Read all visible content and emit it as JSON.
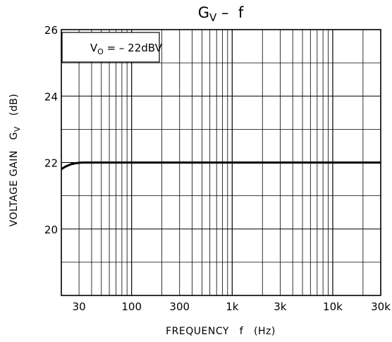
{
  "chart_data": {
    "type": "line",
    "title": {
      "main": "G",
      "subscript": "V",
      "rest": " –  f"
    },
    "xlabel": "FREQUENCY   f   (Hz)",
    "ylabel": "VOLTAGE GAIN   G",
    "ylabel_sub": "V",
    "ylabel_unit": "   (dB)",
    "annotation": {
      "pre": "V",
      "sub": "O",
      "post": " = – 22dBV"
    },
    "x_scale": "log",
    "xlim": [
      20,
      30000
    ],
    "ylim": [
      18,
      26
    ],
    "grid": true,
    "x_ticks": [
      {
        "value": 30,
        "label": "30"
      },
      {
        "value": 100,
        "label": "100"
      },
      {
        "value": 300,
        "label": "300"
      },
      {
        "value": 1000,
        "label": "1k"
      },
      {
        "value": 3000,
        "label": "3k"
      },
      {
        "value": 10000,
        "label": "10k"
      },
      {
        "value": 30000,
        "label": "30k"
      }
    ],
    "y_ticks": [
      {
        "value": 20,
        "label": "20"
      },
      {
        "value": 22,
        "label": "22"
      },
      {
        "value": 24,
        "label": "24"
      },
      {
        "value": 26,
        "label": "26"
      }
    ],
    "series": [
      {
        "x": [
          20,
          22,
          25,
          28,
          32,
          40,
          100,
          1000,
          10000,
          30000
        ],
        "y": [
          21.8,
          21.88,
          21.95,
          21.98,
          22.0,
          22.0,
          22.0,
          22.0,
          22.0,
          22.0
        ]
      }
    ]
  }
}
